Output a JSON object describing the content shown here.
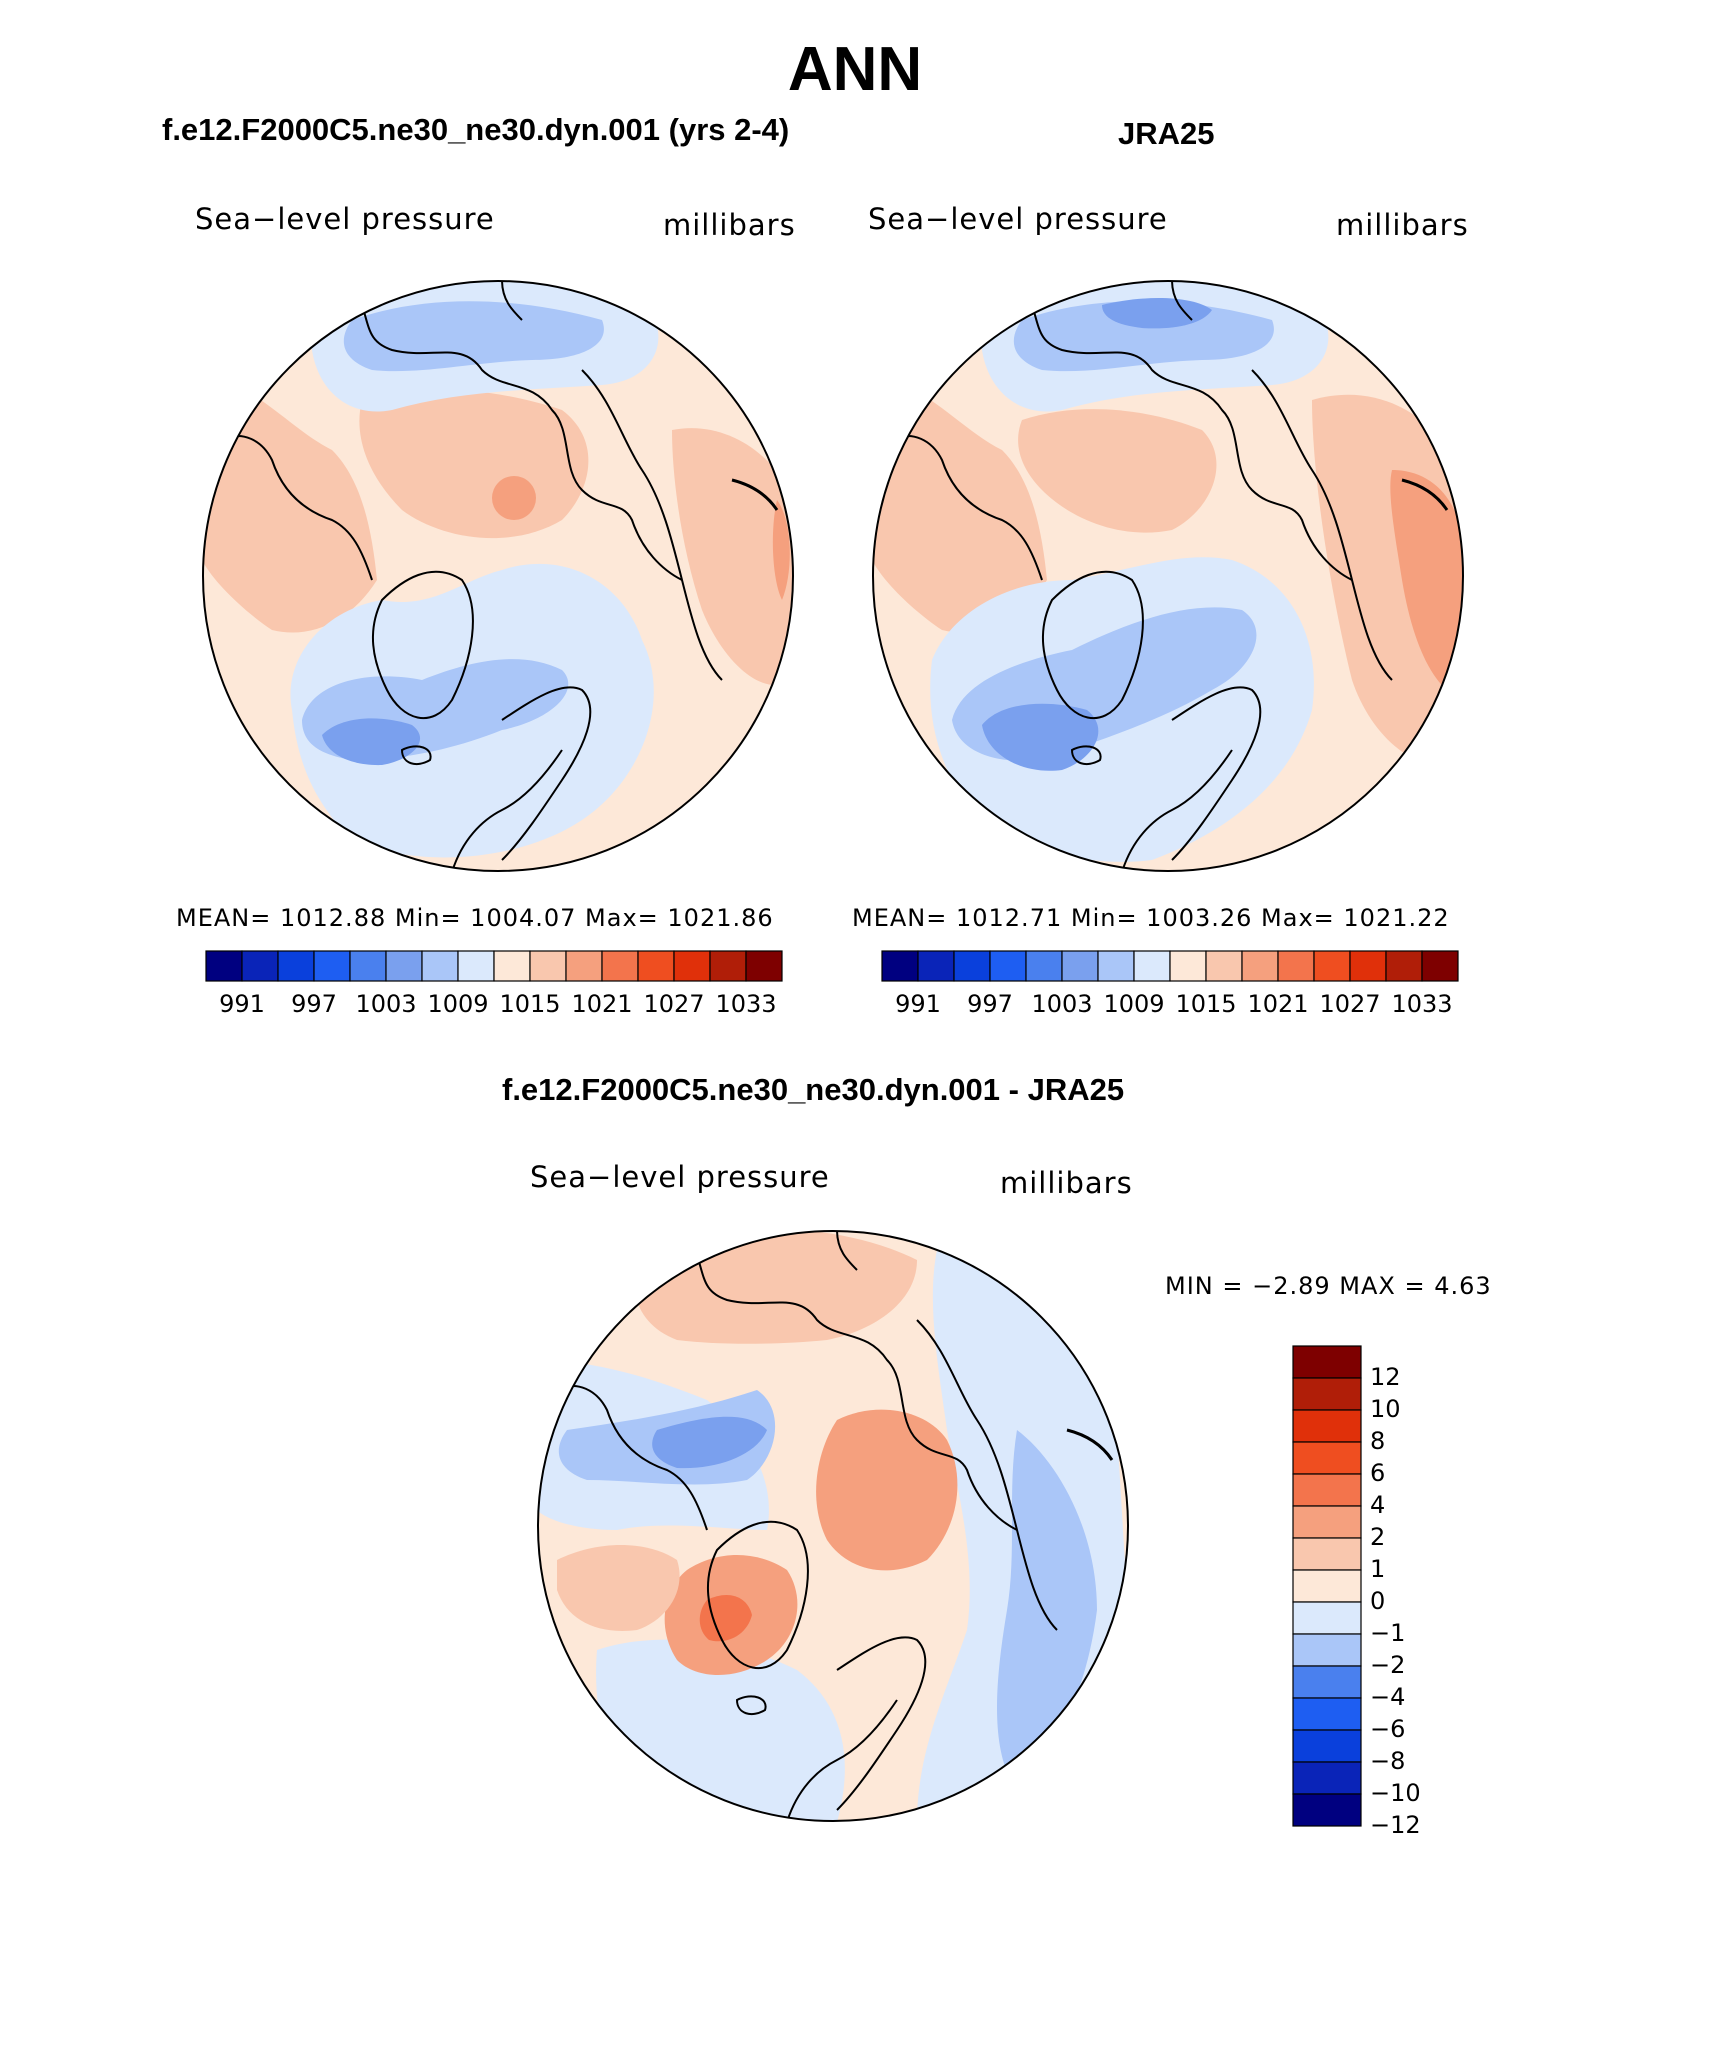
{
  "title": "ANN",
  "colors": {
    "land_outline": "#000000",
    "abs_scale": [
      "#000080",
      "#0a24b8",
      "#0a40dc",
      "#1e5ef2",
      "#4a80ee",
      "#7aa0ee",
      "#aac6f8",
      "#dbe9fc",
      "#fde8d8",
      "#f9c7ae",
      "#f5a07e",
      "#f3744c",
      "#ef4e20",
      "#e0300a",
      "#b01e08",
      "#7e0000"
    ],
    "diff_scale": [
      "#000080",
      "#0a24b8",
      "#0a40dc",
      "#1e5ef2",
      "#4a80ee",
      "#aac6f8",
      "#dbe9fc",
      "#fde8d8",
      "#f9c7ae",
      "#f5a07e",
      "#f3744c",
      "#ef4e20",
      "#e0300a",
      "#b01e08",
      "#7e0000"
    ]
  },
  "panels": [
    {
      "heading": "f.e12.F2000C5.ne30_ne30.dyn.001 (yrs 2-4)",
      "variable": "Sea−level pressure",
      "units": "millibars",
      "stats": "MEAN= 1012.88  Min= 1004.07  Max= 1021.86",
      "colorbar_labels": [
        "991",
        "997",
        "1003",
        "1009",
        "1015",
        "1021",
        "1027",
        "1033"
      ]
    },
    {
      "heading": "JRA25",
      "variable": "Sea−level pressure",
      "units": "millibars",
      "stats": "MEAN= 1012.71  Min= 1003.26  Max= 1021.22",
      "colorbar_labels": [
        "991",
        "997",
        "1003",
        "1009",
        "1015",
        "1021",
        "1027",
        "1033"
      ]
    }
  ],
  "difference": {
    "heading": "f.e12.F2000C5.ne30_ne30.dyn.001 - JRA25",
    "variable": "Sea−level pressure",
    "units": "millibars",
    "stats": "MIN =   −2.89 MAX =    4.63",
    "colorbar_labels": [
      "12",
      "10",
      "8",
      "6",
      "4",
      "2",
      "1",
      "0",
      "−1",
      "−2",
      "−4",
      "−6",
      "−8",
      "−10",
      "−12"
    ]
  }
}
